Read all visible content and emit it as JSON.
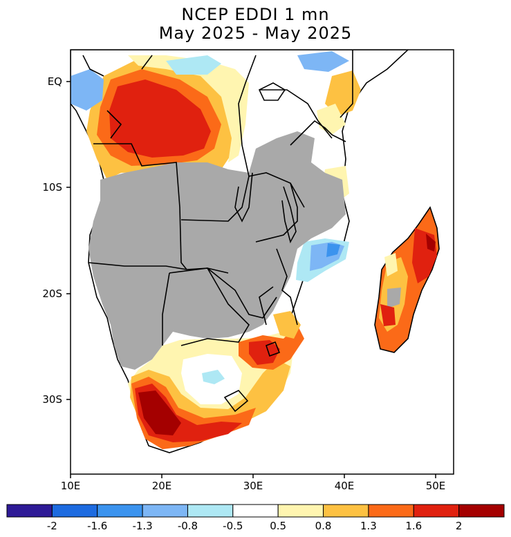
{
  "title": {
    "line1": "NCEP EDDI 1 mn",
    "line2": "May 2025 - May 2025"
  },
  "map": {
    "region": "Southern Africa",
    "lat_labels": [
      "EQ",
      "10S",
      "20S",
      "30S"
    ],
    "lon_labels": [
      "10E",
      "20E",
      "30E",
      "40E",
      "50E"
    ],
    "no_data_color": "#a9a9a9",
    "border_color": "#000000"
  },
  "legend": {
    "labels": [
      "-2",
      "-1.6",
      "-1.3",
      "-0.8",
      "-0.5",
      "0.5",
      "0.8",
      "1.3",
      "1.6",
      "2"
    ],
    "colors": [
      "#2e1a96",
      "#1d6be0",
      "#3b93ee",
      "#7db6f5",
      "#aee8f4",
      "#ffffff",
      "#fff5b0",
      "#fdc142",
      "#fb6a18",
      "#e0210f",
      "#a40000"
    ]
  }
}
